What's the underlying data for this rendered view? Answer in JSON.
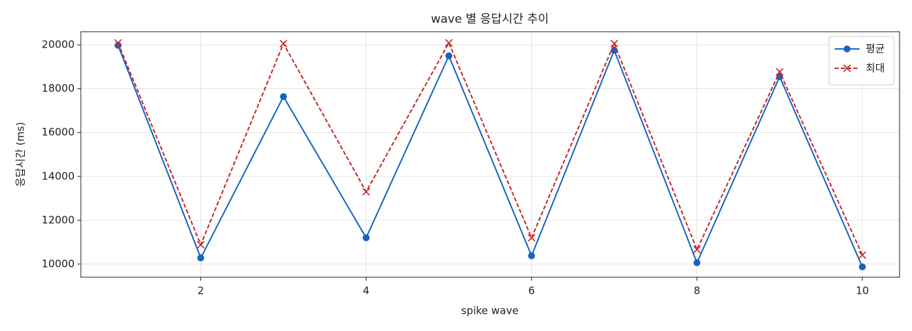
{
  "chart_data": {
    "type": "line",
    "title": "wave 별 응답시간 추이",
    "x_label": "spike wave",
    "y_label": "응답시간 (ms)",
    "x": [
      1,
      2,
      3,
      4,
      5,
      6,
      7,
      8,
      9,
      10
    ],
    "series": [
      {
        "name": "평균",
        "color": "#1565c0",
        "marker": "o",
        "dash": false,
        "values": [
          19980,
          10280,
          17640,
          11200,
          19500,
          10380,
          19750,
          10060,
          18550,
          9870
        ]
      },
      {
        "name": "최대",
        "color": "#c62828",
        "marker": "x",
        "dash": true,
        "values": [
          20090,
          10880,
          20060,
          13300,
          20090,
          11200,
          20060,
          10660,
          18770,
          10410
        ]
      }
    ],
    "xlim": [
      0.55,
      10.45
    ],
    "xticks": [
      2,
      4,
      6,
      8,
      10
    ],
    "ylim": [
      9400,
      20600
    ],
    "yticks": [
      10000,
      12000,
      14000,
      16000,
      18000,
      20000
    ],
    "grid": true,
    "legend": "upper right"
  }
}
